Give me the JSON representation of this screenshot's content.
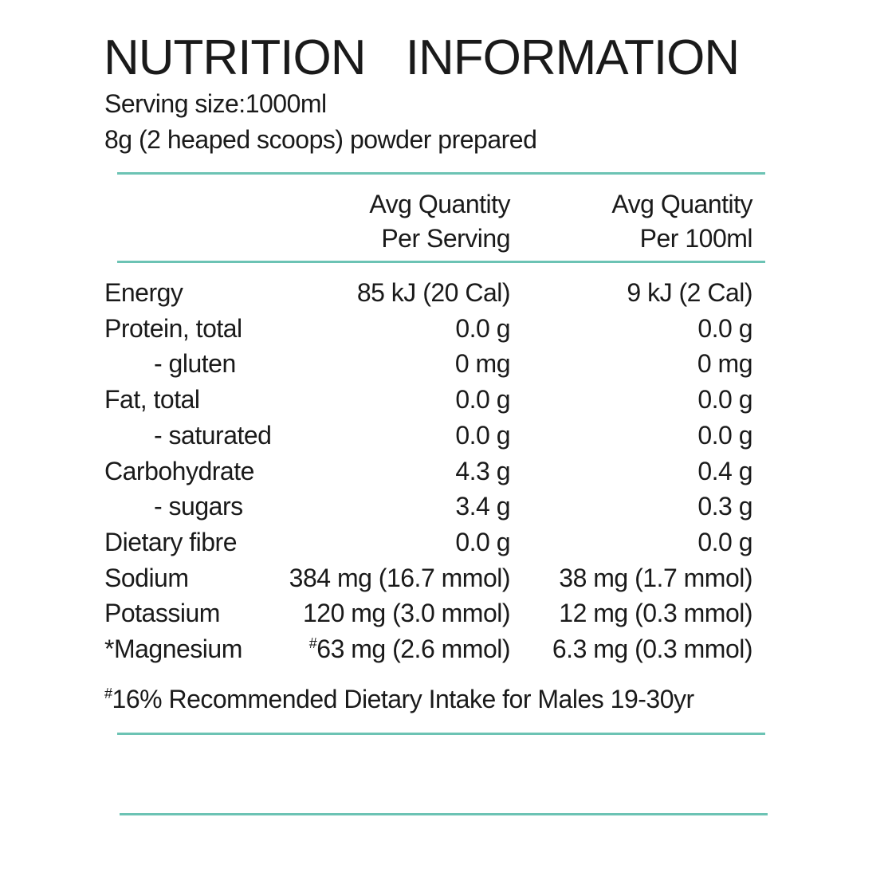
{
  "header": {
    "title": "NUTRITION INFORMATION",
    "serving_size": "Serving size:1000ml",
    "preparation": "8g (2 heaped scoops) powder prepared"
  },
  "table": {
    "columns": [
      [
        "Avg Quantity",
        "Per Serving"
      ],
      [
        "Avg Quantity",
        "Per 100ml"
      ]
    ],
    "rows": [
      {
        "label": "Energy",
        "per_serving": "85 kJ (20 Cal)",
        "per_100ml": "9 kJ (2 Cal)"
      },
      {
        "label": "Protein, total",
        "per_serving": "0.0 g",
        "per_100ml": "0.0 g"
      },
      {
        "label": "- gluten",
        "per_serving": "0 mg",
        "per_100ml": "0 mg"
      },
      {
        "label": "Fat, total",
        "per_serving": "0.0 g",
        "per_100ml": "0.0 g"
      },
      {
        "label": "- saturated",
        "per_serving": "0.0 g",
        "per_100ml": "0.0 g"
      },
      {
        "label": "Carbohydrate",
        "per_serving": "4.3 g",
        "per_100ml": "0.4 g"
      },
      {
        "label": "- sugars",
        "per_serving": "3.4 g",
        "per_100ml": "0.3 g"
      },
      {
        "label": "Dietary fibre",
        "per_serving": "0.0 g",
        "per_100ml": "0.0 g"
      },
      {
        "label": "Sodium",
        "per_serving": "384 mg (16.7 mmol)",
        "per_100ml": "38 mg (1.7 mmol)"
      },
      {
        "label": "Potassium",
        "per_serving": "120 mg (3.0 mmol)",
        "per_100ml": "12 mg (0.3 mmol)"
      },
      {
        "label": "*Magnesium",
        "per_serving": {
          "marker": "#",
          "text": "63 mg (2.6 mmol)"
        },
        "per_100ml": "6.3 mg (0.3 mmol)"
      }
    ]
  },
  "footnote": {
    "marker": "#",
    "text": "16% Recommended Dietary Intake for Males 19-30yr"
  }
}
